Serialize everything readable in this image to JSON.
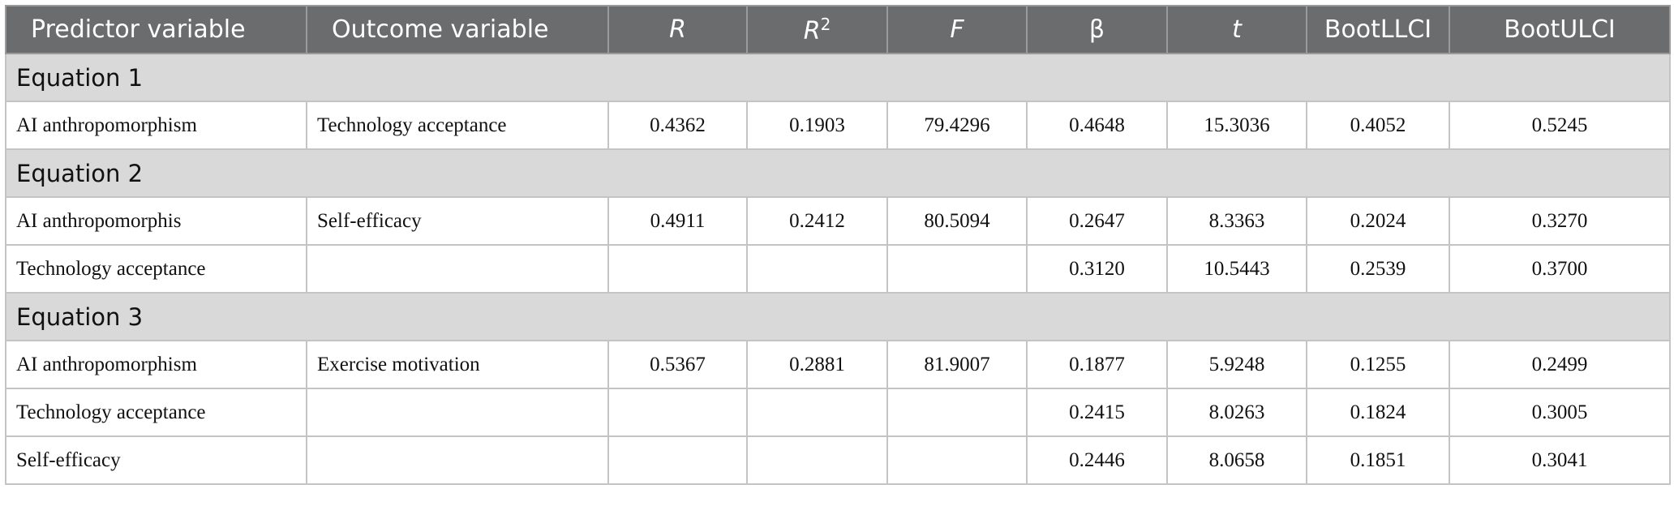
{
  "table": {
    "header": [
      {
        "text": "Predictor variable"
      },
      {
        "text": "Outcome variable"
      },
      {
        "text": "R",
        "italic": true
      },
      {
        "text": "R",
        "sup": "2",
        "italic": true
      },
      {
        "text": "F",
        "italic": true
      },
      {
        "text": "β"
      },
      {
        "text": "t",
        "italic": true
      },
      {
        "text": "BootLLCI"
      },
      {
        "text": "BootULCI"
      }
    ],
    "sections": [
      {
        "title": "Equation 1",
        "rows": [
          [
            "AI anthropomorphism",
            "Technology acceptance",
            "0.4362",
            "0.1903",
            "79.4296",
            "0.4648",
            "15.3036",
            "0.4052",
            "0.5245"
          ]
        ]
      },
      {
        "title": "Equation 2",
        "rows": [
          [
            "AI anthropomorphis",
            "Self-efficacy",
            "0.4911",
            "0.2412",
            "80.5094",
            "0.2647",
            "8.3363",
            "0.2024",
            "0.3270"
          ],
          [
            "Technology acceptance",
            null,
            null,
            null,
            null,
            "0.3120",
            "10.5443",
            "0.2539",
            "0.3700"
          ]
        ]
      },
      {
        "title": "Equation 3",
        "rows": [
          [
            "AI anthropomorphism",
            "Exercise motivation",
            "0.5367",
            "0.2881",
            "81.9007",
            "0.1877",
            "5.9248",
            "0.1255",
            "0.2499"
          ],
          [
            "Technology acceptance",
            null,
            null,
            null,
            null,
            "0.2415",
            "8.0263",
            "0.1824",
            "0.3005"
          ],
          [
            "Self-efficacy",
            null,
            null,
            null,
            null,
            "0.2446",
            "8.0658",
            "0.1851",
            "0.3041"
          ]
        ]
      }
    ]
  }
}
